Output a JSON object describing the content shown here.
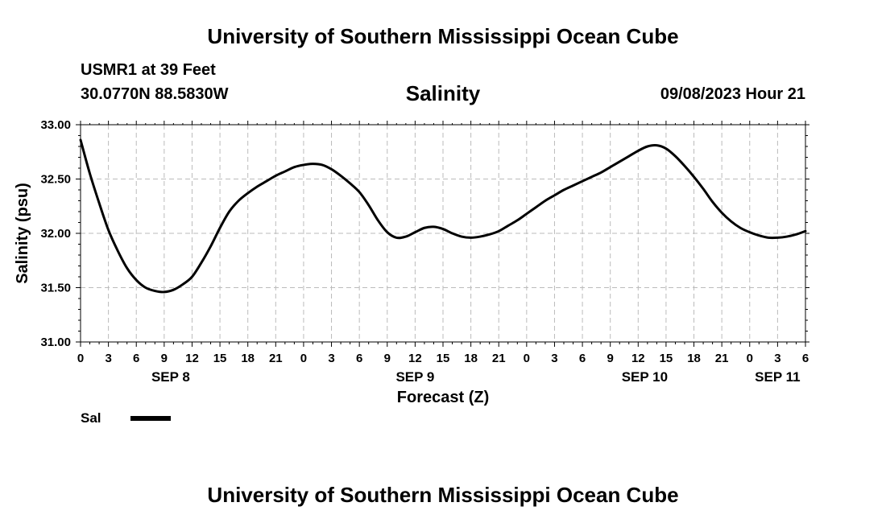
{
  "header": {
    "title": "University of Southern Mississippi Ocean Cube",
    "station": "USMR1 at 39 Feet",
    "coords": "30.0770N  88.5830W",
    "timestamp": "09/08/2023 Hour 21"
  },
  "footer": {
    "title": "University of Southern Mississippi Ocean Cube"
  },
  "colors": {
    "line": "#000000",
    "grid": "#bbbbbb",
    "background": "#ffffff"
  },
  "chart_data": {
    "type": "line",
    "title": "Salinity",
    "xlabel": "Forecast (Z)",
    "ylabel": "Salinity (psu)",
    "xlim": [
      0,
      78
    ],
    "ylim": [
      31.0,
      33.0
    ],
    "grid": true,
    "x_ticks": [
      0,
      3,
      6,
      9,
      12,
      15,
      18,
      21,
      24,
      27,
      30,
      33,
      36,
      39,
      42,
      45,
      48,
      51,
      54,
      57,
      60,
      63,
      66,
      69,
      72,
      75,
      78
    ],
    "x_tick_labels": [
      "0",
      "3",
      "6",
      "9",
      "12",
      "15",
      "18",
      "21",
      "0",
      "3",
      "6",
      "9",
      "12",
      "15",
      "18",
      "21",
      "0",
      "3",
      "6",
      "9",
      "12",
      "15",
      "18",
      "21",
      "0",
      "3",
      "6"
    ],
    "y_ticks": [
      31.0,
      31.5,
      32.0,
      32.5,
      33.0
    ],
    "y_tick_labels": [
      "31.00",
      "31.50",
      "32.00",
      "32.50",
      "33.00"
    ],
    "day_labels": [
      {
        "label": "SEP 8",
        "x": 9.7
      },
      {
        "label": "SEP 9",
        "x": 36
      },
      {
        "label": "SEP 10",
        "x": 60.7
      },
      {
        "label": "SEP 11",
        "x": 75
      }
    ],
    "legend": {
      "position": "bottom-left",
      "entries": [
        {
          "label": "Sal"
        }
      ]
    },
    "series": [
      {
        "name": "Sal",
        "x": [
          0,
          1,
          2,
          3,
          4,
          5,
          6,
          7,
          8,
          9,
          10,
          11,
          12,
          13,
          14,
          15,
          16,
          17,
          18,
          19,
          20,
          21,
          22,
          23,
          24,
          25,
          26,
          27,
          28,
          29,
          30,
          31,
          32,
          33,
          34,
          35,
          36,
          37,
          38,
          39,
          40,
          41,
          42,
          43,
          44,
          45,
          46,
          47,
          48,
          49,
          50,
          51,
          52,
          53,
          54,
          55,
          56,
          57,
          58,
          59,
          60,
          61,
          62,
          63,
          64,
          65,
          66,
          67,
          68,
          69,
          70,
          71,
          72,
          73,
          74,
          75,
          76,
          77,
          78
        ],
        "values": [
          32.86,
          32.55,
          32.28,
          32.03,
          31.84,
          31.68,
          31.57,
          31.5,
          31.47,
          31.46,
          31.48,
          31.53,
          31.6,
          31.73,
          31.88,
          32.05,
          32.2,
          32.3,
          32.37,
          32.43,
          32.48,
          32.53,
          32.57,
          32.61,
          32.63,
          32.64,
          32.63,
          32.59,
          32.53,
          32.46,
          32.38,
          32.26,
          32.12,
          32.01,
          31.96,
          31.97,
          32.01,
          32.05,
          32.06,
          32.04,
          32.0,
          31.97,
          31.96,
          31.97,
          31.99,
          32.02,
          32.07,
          32.12,
          32.18,
          32.24,
          32.3,
          32.35,
          32.4,
          32.44,
          32.48,
          32.52,
          32.56,
          32.61,
          32.66,
          32.71,
          32.76,
          32.8,
          32.81,
          32.78,
          32.71,
          32.62,
          32.52,
          32.41,
          32.29,
          32.19,
          32.11,
          32.05,
          32.01,
          31.98,
          31.96,
          31.96,
          31.97,
          31.99,
          32.02
        ]
      }
    ]
  }
}
